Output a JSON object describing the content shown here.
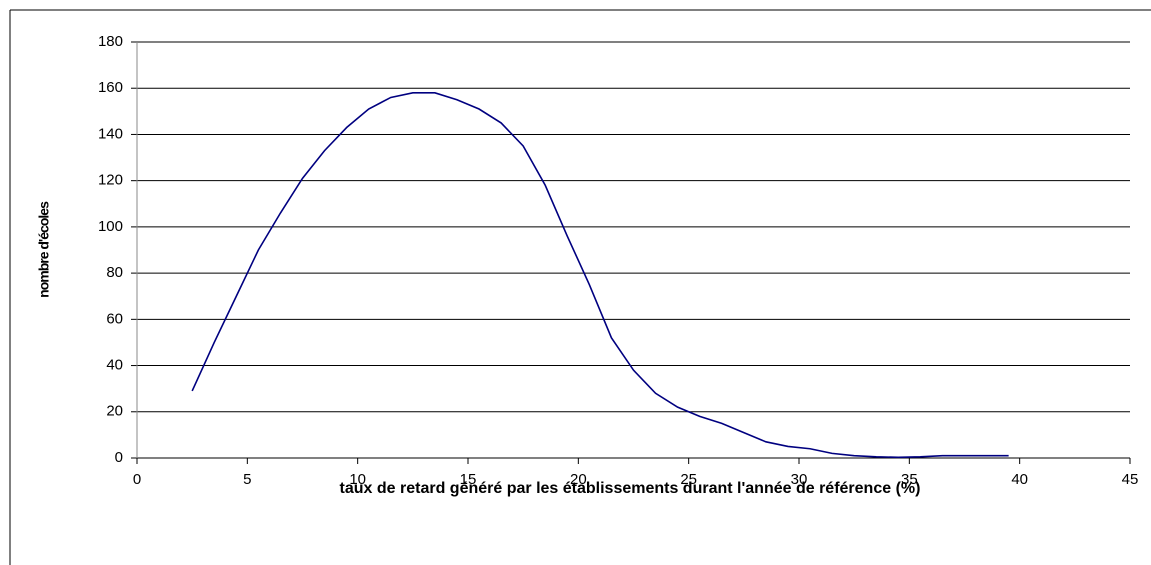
{
  "chart_data": {
    "type": "line",
    "xlabel": "taux de retard généré par les établissements durant l'année de référence (%)",
    "ylabel": "nombre d'écoles",
    "x": [
      2.5,
      3.5,
      4.5,
      5.5,
      6.5,
      7.5,
      8.5,
      9.5,
      10.5,
      11.5,
      12.5,
      13.5,
      14.5,
      15.5,
      16.5,
      17.5,
      18.5,
      19.5,
      20.5,
      21.5,
      22.5,
      23.5,
      24.5,
      25.5,
      26.5,
      27.5,
      28.5,
      29.5,
      30.5,
      31.5,
      32.5,
      33.5,
      34.5,
      35.5,
      36.5,
      37.5,
      38.5,
      39.5
    ],
    "series": [
      {
        "color": "#000080",
        "values": [
          29,
          50,
          70,
          90,
          106,
          121,
          133,
          143,
          151,
          156,
          158,
          158,
          155,
          151,
          145,
          135,
          118,
          96,
          75,
          52,
          38,
          28,
          22,
          18,
          15,
          11,
          7,
          5,
          4,
          2,
          1,
          0.5,
          0.3,
          0.5,
          1,
          1,
          1,
          1
        ]
      }
    ],
    "xlim": [
      0,
      45
    ],
    "xticks": [
      0,
      5,
      10,
      15,
      20,
      25,
      30,
      35,
      40,
      45
    ],
    "ylim": [
      0,
      180
    ],
    "yticks": [
      0,
      20,
      40,
      60,
      80,
      100,
      120,
      140,
      160,
      180
    ],
    "grid": true
  }
}
